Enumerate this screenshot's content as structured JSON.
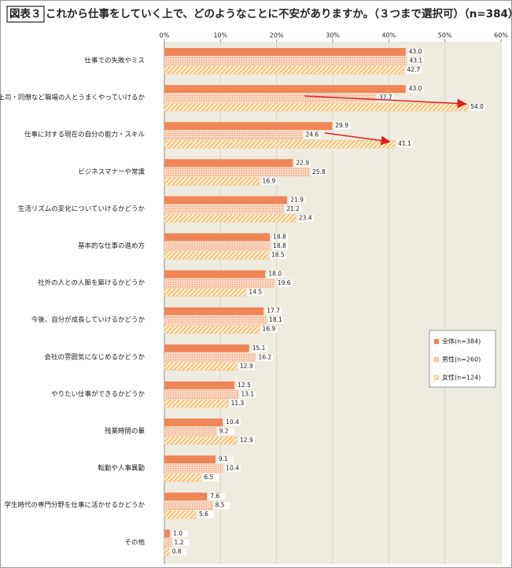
{
  "chart_data": {
    "type": "hbar",
    "label": "図表３",
    "title": "これから仕事をしていく上で、どのようなことに不安がありますか。（３つまで選択可）（n=384）",
    "categories": [
      "仕事での失敗やミス",
      "上司・同僚など職場の人とうまくやっていけるか",
      "仕事に対する現在の自分の能力・スキル",
      "ビジネスマナーや常識",
      "生活リズムの変化についていけるかどうか",
      "基本的な仕事の進め方",
      "社外の人との人脈を築けるかどうか",
      "今後、自分が成長していけるかどうか",
      "会社の雰囲気になじめるかどうか",
      "やりたい仕事ができるかどうか",
      "残業時間の量",
      "転勤や人事異動",
      "学生時代の専門分野を仕事に活かせるかどうか",
      "その他"
    ],
    "series": [
      {
        "name": "全体(n=384)",
        "color": "#ef8657",
        "pattern": "solid",
        "values": [
          43.0,
          43.0,
          29.9,
          22.9,
          21.9,
          18.8,
          18.0,
          17.7,
          15.1,
          12.5,
          10.4,
          9.1,
          7.6,
          1.0
        ],
        "value_labels": [
          "43.0",
          "43.0",
          "29.9",
          "22.9",
          "21.9",
          "18.8",
          "18.0",
          "17.7",
          "15.1",
          "12.5",
          "10.4",
          "9.1",
          "7.6",
          "1.0"
        ]
      },
      {
        "name": "男性(n=260)",
        "color": "#f4a47a",
        "pattern": "dots",
        "values": [
          43.1,
          37.7,
          24.6,
          25.8,
          21.2,
          18.8,
          19.6,
          18.1,
          16.2,
          13.1,
          9.2,
          10.4,
          8.5,
          1.2
        ],
        "value_labels": [
          "43.1",
          "37.7",
          "24.6",
          "25.8",
          "21.2",
          "18.8",
          "19.6",
          "18.1",
          "16.2",
          "13.1",
          "9.2",
          "10.4",
          "8.5",
          "1.2"
        ]
      },
      {
        "name": "女性(n=124)",
        "color": "#f5c27a",
        "pattern": "hatch",
        "values": [
          42.7,
          54.0,
          41.1,
          16.9,
          23.4,
          18.5,
          14.5,
          16.9,
          12.9,
          11.3,
          12.9,
          6.5,
          5.6,
          0.8
        ],
        "value_labels": [
          "42.7",
          "54.0",
          "41.1",
          "16.9",
          "23.4",
          "18.5",
          "14.5",
          "16.9",
          "12.9",
          "11.3",
          "12.9",
          "6.5",
          "5.6",
          "0.8"
        ]
      }
    ],
    "xlim": [
      0,
      60
    ],
    "xticks": [
      {
        "value": 0,
        "label": "0%"
      },
      {
        "value": 10,
        "label": "10%"
      },
      {
        "value": 20,
        "label": "20%"
      },
      {
        "value": 30,
        "label": "30%"
      },
      {
        "value": 40,
        "label": "40%"
      },
      {
        "value": 50,
        "label": "50%"
      },
      {
        "value": 60,
        "label": "60%"
      }
    ],
    "grid": true,
    "legend": "right"
  }
}
